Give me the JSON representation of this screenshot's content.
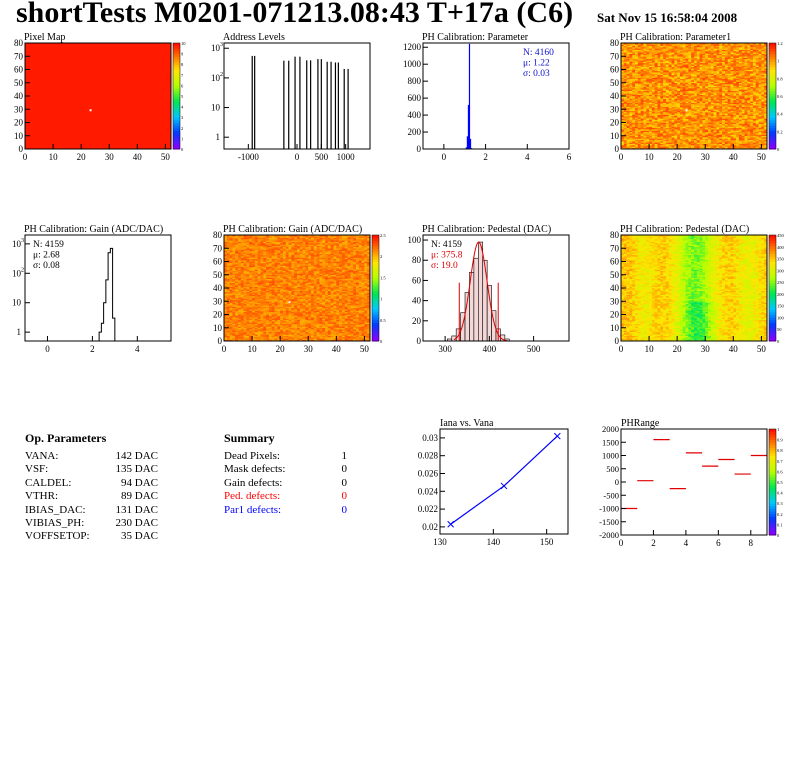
{
  "header": {
    "title": "shortTests M0201-071213.08:43 T+17a (C6)",
    "date": "Sat Nov 15 16:58:04 2008"
  },
  "colors": {
    "red_fill": "#ff1a00",
    "hist_blue": "#0000ff",
    "stat_blue": "#1010d0",
    "stat_red": "#e00000"
  },
  "panels": {
    "pixel_map": {
      "title": "Pixel Map",
      "xticks": [
        "0",
        "10",
        "20",
        "30",
        "40",
        "50"
      ],
      "yticks": [
        "0",
        "10",
        "20",
        "30",
        "40",
        "50",
        "60",
        "70",
        "80"
      ],
      "palette_ticks": [
        "0",
        "1",
        "2",
        "3",
        "4",
        "5",
        "6",
        "7",
        "8",
        "9",
        "10"
      ]
    },
    "address_levels": {
      "title": "Address Levels",
      "xticks": [
        "-1000",
        "0",
        "500",
        "1000"
      ],
      "yticks_exp": [
        "1",
        "10",
        "10",
        "10"
      ],
      "yticks_sup": [
        "",
        "",
        "2",
        "3"
      ]
    },
    "ph_param": {
      "title": "PH Calibration: Parameter",
      "xticks": [
        "0",
        "2",
        "4",
        "6"
      ],
      "yticks": [
        "0",
        "200",
        "400",
        "600",
        "800",
        "1000",
        "1200"
      ],
      "stats": [
        "N: 4160",
        "μ: 1.22",
        "σ: 0.03"
      ]
    },
    "ph_param1": {
      "title": "PH Calibration: Parameter1",
      "xticks": [
        "0",
        "10",
        "20",
        "30",
        "40",
        "50"
      ],
      "yticks": [
        "0",
        "10",
        "20",
        "30",
        "40",
        "50",
        "60",
        "70",
        "80"
      ],
      "palette_ticks": [
        "0",
        "0.2",
        "0.4",
        "0.6",
        "0.8",
        "1",
        "1.2"
      ]
    },
    "gain_hist": {
      "title": "PH Calibration: Gain (ADC/DAC)",
      "xticks": [
        "0",
        "2",
        "4"
      ],
      "stats": [
        "N: 4159",
        "μ: 2.68",
        "σ: 0.08"
      ]
    },
    "gain_map": {
      "title": "PH Calibration: Gain (ADC/DAC)",
      "xticks": [
        "0",
        "10",
        "20",
        "30",
        "40",
        "50"
      ],
      "yticks": [
        "0",
        "10",
        "20",
        "30",
        "40",
        "50",
        "60",
        "70",
        "80"
      ],
      "palette_ticks": [
        "0",
        "0.5",
        "1",
        "1.5",
        "2",
        "2.5"
      ]
    },
    "ped_hist": {
      "title": "PH Calibration: Pedestal (DAC)",
      "xticks": [
        "300",
        "400",
        "500"
      ],
      "yticks": [
        "0",
        "20",
        "40",
        "60",
        "80",
        "100"
      ],
      "stats": [
        "N: 4159",
        "μ: 375.8",
        "σ: 19.0"
      ]
    },
    "ped_map": {
      "title": "PH Calibration: Pedestal (DAC)",
      "xticks": [
        "0",
        "10",
        "20",
        "30",
        "40",
        "50"
      ],
      "yticks": [
        "0",
        "10",
        "20",
        "30",
        "40",
        "50",
        "60",
        "70",
        "80"
      ],
      "palette_ticks": [
        "0",
        "50",
        "100",
        "150",
        "200",
        "250",
        "300",
        "350",
        "400",
        "450"
      ]
    },
    "iana": {
      "title": "Iana vs. Vana",
      "xticks": [
        "130",
        "140",
        "150"
      ],
      "yticks": [
        "0.02",
        "0.022",
        "0.024",
        "0.026",
        "0.028",
        "0.03"
      ]
    },
    "phrange": {
      "title": "PHRange",
      "xticks": [
        "0",
        "2",
        "4",
        "6",
        "8"
      ],
      "yticks": [
        "2000",
        "1500",
        "1000",
        "500",
        "0",
        "-500",
        "-1000",
        "-1500",
        "-2000"
      ],
      "palette_ticks": [
        "0",
        "0.1",
        "0.2",
        "0.3",
        "0.4",
        "0.5",
        "0.6",
        "0.7",
        "0.8",
        "0.9",
        "1"
      ]
    }
  },
  "op_parameters": {
    "title": "Op. Parameters",
    "rows": [
      {
        "name": "VANA:",
        "value": "142 DAC"
      },
      {
        "name": "VSF:",
        "value": "135 DAC"
      },
      {
        "name": "CALDEL:",
        "value": "94 DAC"
      },
      {
        "name": "VTHR:",
        "value": "89 DAC"
      },
      {
        "name": "IBIAS_DAC:",
        "value": "131 DAC"
      },
      {
        "name": "VIBIAS_PH:",
        "value": "230 DAC"
      },
      {
        "name": "VOFFSETOP:",
        "value": "35 DAC"
      }
    ]
  },
  "summary": {
    "title": "Summary",
    "rows": [
      {
        "name": "Dead Pixels:",
        "value": "1",
        "color": "#000000"
      },
      {
        "name": "Mask defects:",
        "value": "0",
        "color": "#000000"
      },
      {
        "name": "Gain defects:",
        "value": "0",
        "color": "#000000"
      },
      {
        "name": "Ped. defects:",
        "value": "0",
        "color": "#ff0000"
      },
      {
        "name": "Par1 defects:",
        "value": "0",
        "color": "#0000ff"
      }
    ]
  },
  "chart_data": [
    {
      "type": "heatmap",
      "title": "Pixel Map",
      "xlim": [
        0,
        52
      ],
      "ylim": [
        0,
        80
      ],
      "description_values": {
        "fill_value": 10,
        "dead_pixel": [
          23,
          29
        ]
      },
      "zlim": [
        0,
        10
      ]
    },
    {
      "type": "bar",
      "title": "Address Levels",
      "xlim": [
        -1500,
        1500
      ],
      "y_log": true,
      "peaks_x": [
        -920,
        -870,
        -270,
        -170,
        -40,
        60,
        200,
        280,
        430,
        500,
        620,
        700,
        790,
        850,
        970,
        1050
      ],
      "peaks_y": [
        550,
        550,
        380,
        380,
        520,
        520,
        390,
        390,
        430,
        430,
        350,
        350,
        330,
        330,
        200,
        200
      ]
    },
    {
      "type": "bar",
      "title": "PH Calibration: Parameter",
      "xlim": [
        -1,
        6
      ],
      "ylim": [
        0,
        1250
      ],
      "x": [
        1.05,
        1.1,
        1.15,
        1.2,
        1.25,
        1.3
      ],
      "values": [
        20,
        150,
        520,
        1240,
        120,
        10
      ],
      "stats": {
        "N": 4160,
        "mean": 1.22,
        "sigma": 0.03
      }
    },
    {
      "type": "heatmap",
      "title": "PH Calibration: Parameter1",
      "xlim": [
        0,
        52
      ],
      "ylim": [
        0,
        80
      ],
      "zlim": [
        0,
        1.3
      ]
    },
    {
      "type": "bar",
      "title": "PH Calibration: Gain (ADC/DAC)",
      "xlim": [
        -1,
        5.5
      ],
      "y_log": true,
      "ylim": [
        0.5,
        2000
      ],
      "x": [
        2.3,
        2.4,
        2.5,
        2.6,
        2.7,
        2.8,
        2.9
      ],
      "values": [
        1,
        2,
        10,
        60,
        500,
        700,
        3
      ],
      "stats": {
        "N": 4159,
        "mean": 2.68,
        "sigma": 0.08
      }
    },
    {
      "type": "heatmap",
      "title": "PH Calibration: Gain (ADC/DAC)",
      "xlim": [
        0,
        52
      ],
      "ylim": [
        0,
        80
      ],
      "zlim": [
        0,
        2.8
      ]
    },
    {
      "type": "bar",
      "title": "PH Calibration: Pedestal (DAC)",
      "xlim": [
        250,
        580
      ],
      "ylim": [
        0,
        105
      ],
      "x": [
        310,
        320,
        330,
        340,
        350,
        360,
        370,
        380,
        390,
        400,
        410,
        420,
        430,
        440
      ],
      "values": [
        2,
        5,
        12,
        28,
        48,
        68,
        82,
        98,
        80,
        55,
        30,
        12,
        6,
        2
      ],
      "stats": {
        "N": 4159,
        "mean": 375.8,
        "sigma": 19.0
      }
    },
    {
      "type": "heatmap",
      "title": "PH Calibration: Pedestal (DAC)",
      "xlim": [
        0,
        52
      ],
      "ylim": [
        0,
        80
      ],
      "zlim": [
        0,
        470
      ]
    },
    {
      "type": "line",
      "title": "Iana vs. Vana",
      "xlim": [
        130,
        154
      ],
      "ylim": [
        0.0192,
        0.031
      ],
      "x": [
        132,
        142,
        152
      ],
      "y": [
        0.0203,
        0.0246,
        0.0302
      ]
    },
    {
      "type": "scatter",
      "title": "PHRange",
      "xlim": [
        0,
        9
      ],
      "ylim": [
        -2000,
        2000
      ],
      "x": [
        0.5,
        1.5,
        2.5,
        3.5,
        4.5,
        5.5,
        6.5,
        7.5,
        8.5
      ],
      "y": [
        -1000,
        50,
        1600,
        -250,
        1100,
        600,
        850,
        300,
        1000
      ]
    }
  ]
}
